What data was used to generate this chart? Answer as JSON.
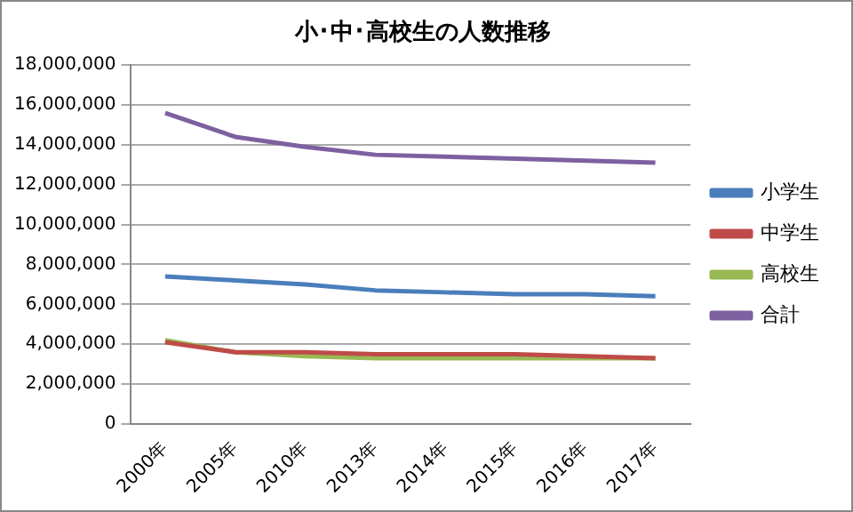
{
  "chart_data": {
    "type": "line",
    "title": "小･中･高校生の人数推移",
    "categories": [
      "2000年",
      "2005年",
      "2010年",
      "2013年",
      "2014年",
      "2015年",
      "2016年",
      "2017年"
    ],
    "series": [
      {
        "name": "小学生",
        "color": "#4a7ebb",
        "values": [
          7400000,
          7200000,
          7000000,
          6700000,
          6600000,
          6500000,
          6500000,
          6400000
        ]
      },
      {
        "name": "中学生",
        "color": "#be4b48",
        "values": [
          4100000,
          3600000,
          3600000,
          3500000,
          3500000,
          3500000,
          3400000,
          3300000
        ]
      },
      {
        "name": "高校生",
        "color": "#98b954",
        "values": [
          4200000,
          3600000,
          3400000,
          3300000,
          3300000,
          3300000,
          3300000,
          3300000
        ]
      },
      {
        "name": "合計",
        "color": "#7d60a0",
        "values": [
          15600000,
          14400000,
          13900000,
          13500000,
          13400000,
          13300000,
          13200000,
          13100000
        ]
      }
    ],
    "ylim": [
      0,
      18000000
    ],
    "yticks": [
      0,
      {
        "value": 2000000,
        "label": "2,000,000"
      },
      {
        "value": 4000000,
        "label": "4,000,000"
      },
      {
        "value": 6000000,
        "label": "6,000,000"
      },
      {
        "value": 8000000,
        "label": "8,000,000"
      },
      {
        "value": 10000000,
        "label": "10,000,000"
      },
      {
        "value": 12000000,
        "label": "12,000,000"
      },
      {
        "value": 14000000,
        "label": "14,000,000"
      },
      {
        "value": 16000000,
        "label": "16,000,000"
      },
      {
        "value": 18000000,
        "label": "18,000,000"
      }
    ],
    "grid": "y",
    "legend": "right",
    "marker": "none",
    "line_style": "solid"
  }
}
